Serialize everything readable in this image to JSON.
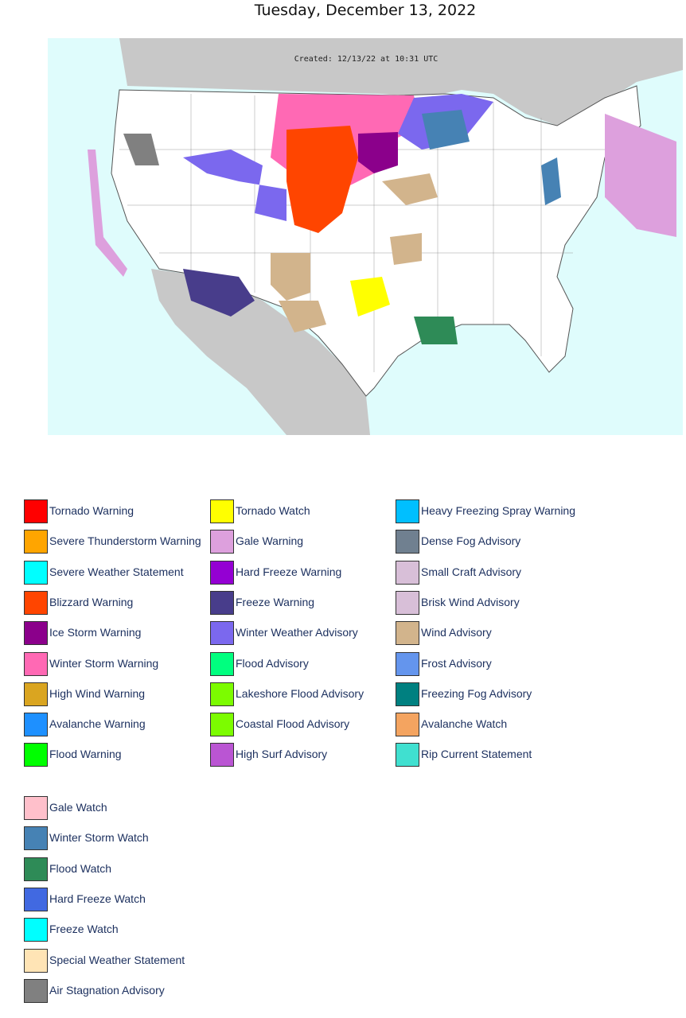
{
  "header": {
    "title": "Tuesday, December 13, 2022"
  },
  "map": {
    "created": "Created: 12/13/22 at 10:31 UTC"
  },
  "legend": {
    "columns": [
      [
        {
          "label": "Tornado Warning",
          "color": "#FF0000"
        },
        {
          "label": "Severe Thunderstorm Warning",
          "color": "#FFA500"
        },
        {
          "label": "Severe Weather Statement",
          "color": "#00FFFF"
        },
        {
          "label": "Blizzard Warning",
          "color": "#FF4500"
        },
        {
          "label": "Ice Storm Warning",
          "color": "#8B008B"
        },
        {
          "label": "Winter Storm Warning",
          "color": "#FF69B4"
        },
        {
          "label": "High Wind Warning",
          "color": "#DAA520"
        },
        {
          "label": "Avalanche Warning",
          "color": "#1E90FF"
        },
        {
          "label": "Flood Warning",
          "color": "#00FF00"
        }
      ],
      [
        {
          "label": "Tornado Watch",
          "color": "#FFFF00"
        },
        {
          "label": "Gale Warning",
          "color": "#DDA0DD"
        },
        {
          "label": "Hard Freeze Warning",
          "color": "#9400D3"
        },
        {
          "label": "Freeze Warning",
          "color": "#483D8B"
        },
        {
          "label": "Winter Weather Advisory",
          "color": "#7B68EE"
        },
        {
          "label": "Flood Advisory",
          "color": "#00FF7F"
        },
        {
          "label": "Lakeshore Flood Advisory",
          "color": "#7CFC00"
        },
        {
          "label": "Coastal Flood Advisory",
          "color": "#7CFC00"
        },
        {
          "label": "High Surf Advisory",
          "color": "#BA55D3"
        }
      ],
      [
        {
          "label": "Heavy Freezing Spray Warning",
          "color": "#00BFFF"
        },
        {
          "label": "Dense Fog Advisory",
          "color": "#708090"
        },
        {
          "label": "Small Craft Advisory",
          "color": "#D8BFD8"
        },
        {
          "label": "Brisk Wind Advisory",
          "color": "#D8BFD8"
        },
        {
          "label": "Wind Advisory",
          "color": "#D2B48C"
        },
        {
          "label": "Frost Advisory",
          "color": "#6495ED"
        },
        {
          "label": "Freezing Fog Advisory",
          "color": "#008080"
        },
        {
          "label": "Avalanche Watch",
          "color": "#F4A460"
        },
        {
          "label": "Rip Current Statement",
          "color": "#40E0D0"
        }
      ]
    ],
    "watches": [
      {
        "label": "Gale Watch",
        "color": "#FFC0CB"
      },
      {
        "label": "Winter Storm Watch",
        "color": "#4682B4"
      },
      {
        "label": "Flood Watch",
        "color": "#2E8B57"
      },
      {
        "label": "Hard Freeze Watch",
        "color": "#4169E1"
      },
      {
        "label": "Freeze Watch",
        "color": "#00FFFF"
      },
      {
        "label": "Special Weather Statement",
        "color": "#FFE4B5"
      },
      {
        "label": "Air Stagnation Advisory",
        "color": "#808080"
      }
    ]
  }
}
